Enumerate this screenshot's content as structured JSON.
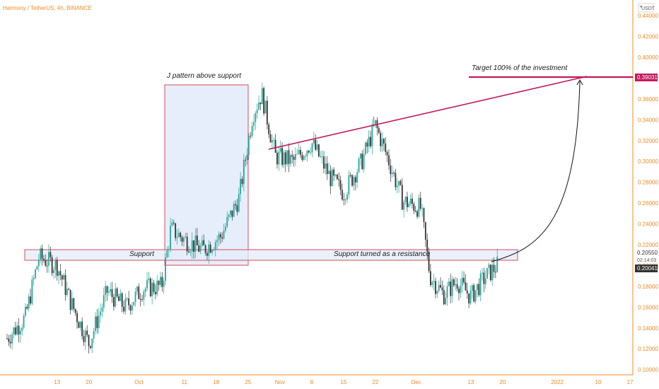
{
  "header": {
    "title": "Harmony / TetherUS, 4h, BINANCE",
    "currency_label": "USDT"
  },
  "colors": {
    "up": "#26a69a",
    "down": "#333333",
    "accent": "#c2185b",
    "axis_text": "#f08a24",
    "zone_fill": "#e3ecfb",
    "zone_border": "#d94c55"
  },
  "chart_data": {
    "type": "candlestick",
    "title": "Harmony / TetherUS, 4h, BINANCE",
    "y_axis": {
      "ticks": [
        "0.10000",
        "0.12000",
        "0.14000",
        "0.16000",
        "0.18000",
        "0.20000",
        "0.22000",
        "0.24000",
        "0.26000",
        "0.28000",
        "0.30000",
        "0.32000",
        "0.34000",
        "0.36000",
        "0.38000",
        "0.40000",
        "0.42000",
        "0.44000"
      ],
      "range": [
        0.095,
        0.455
      ]
    },
    "x_axis": {
      "labels": [
        "13",
        "20",
        "Oct",
        "11",
        "18",
        "25",
        "Nov",
        "8",
        "15",
        "22",
        "Dec",
        "13",
        "20",
        "2022",
        "10",
        "17"
      ]
    },
    "series": [
      {
        "date": "2021-09-02",
        "close": 0.13
      },
      {
        "date": "2021-09-06",
        "close": 0.15
      },
      {
        "date": "2021-09-09",
        "close": 0.208
      },
      {
        "date": "2021-09-13",
        "close": 0.2
      },
      {
        "date": "2021-09-16",
        "close": 0.165
      },
      {
        "date": "2021-09-20",
        "close": 0.125
      },
      {
        "date": "2021-09-24",
        "close": 0.175
      },
      {
        "date": "2021-09-28",
        "close": 0.16
      },
      {
        "date": "2021-10-02",
        "close": 0.178
      },
      {
        "date": "2021-10-06",
        "close": 0.18
      },
      {
        "date": "2021-10-08",
        "close": 0.235
      },
      {
        "date": "2021-10-11",
        "close": 0.225
      },
      {
        "date": "2021-10-15",
        "close": 0.215
      },
      {
        "date": "2021-10-19",
        "close": 0.228
      },
      {
        "date": "2021-10-23",
        "close": 0.265
      },
      {
        "date": "2021-10-26",
        "close": 0.345
      },
      {
        "date": "2021-10-28",
        "close": 0.365
      },
      {
        "date": "2021-10-31",
        "close": 0.305
      },
      {
        "date": "2021-11-04",
        "close": 0.3
      },
      {
        "date": "2021-11-08",
        "close": 0.318
      },
      {
        "date": "2021-11-12",
        "close": 0.285
      },
      {
        "date": "2021-11-15",
        "close": 0.27
      },
      {
        "date": "2021-11-19",
        "close": 0.3
      },
      {
        "date": "2021-11-22",
        "close": 0.335
      },
      {
        "date": "2021-11-25",
        "close": 0.3
      },
      {
        "date": "2021-11-28",
        "close": 0.262
      },
      {
        "date": "2021-12-02",
        "close": 0.255
      },
      {
        "date": "2021-12-04",
        "close": 0.19
      },
      {
        "date": "2021-12-07",
        "close": 0.172
      },
      {
        "date": "2021-12-10",
        "close": 0.185
      },
      {
        "date": "2021-12-13",
        "close": 0.17
      },
      {
        "date": "2021-12-16",
        "close": 0.188
      },
      {
        "date": "2021-12-19",
        "close": 0.201
      }
    ],
    "annotations": {
      "j_pattern": "J pattern above support",
      "support": "Support",
      "support_resistance": "Support turned as a resistance",
      "target": "Target 100% of the investment"
    },
    "price_badges": {
      "target": "0.39031",
      "level": "0.20550",
      "countdown": "02:14:03",
      "last": "0.20041"
    },
    "grid": false
  }
}
